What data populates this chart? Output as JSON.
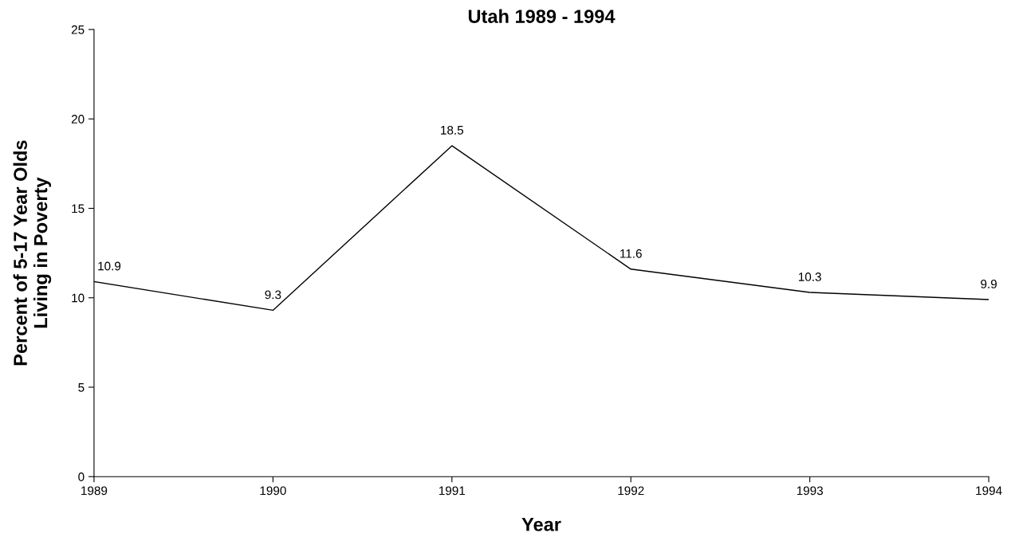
{
  "chart_data": {
    "type": "line",
    "title": "Utah 1989 - 1994",
    "xlabel": "Year",
    "ylabel": "Percent of 5-17 Year Olds\nLiving in Poverty",
    "x": [
      1989,
      1990,
      1991,
      1992,
      1993,
      1994
    ],
    "series": [
      {
        "color": "#000000",
        "values": [
          10.9,
          9.3,
          18.5,
          11.6,
          10.3,
          9.9
        ]
      }
    ],
    "xlim": [
      1989,
      1994
    ],
    "xticks": [
      1989,
      1990,
      1991,
      1992,
      1993,
      1994
    ],
    "ylim": [
      0,
      25
    ],
    "yticks": [
      0,
      5,
      10,
      15,
      20,
      25
    ],
    "data_labels": true,
    "grid": false,
    "legend": false,
    "marker": "none",
    "line_style": "solid"
  }
}
